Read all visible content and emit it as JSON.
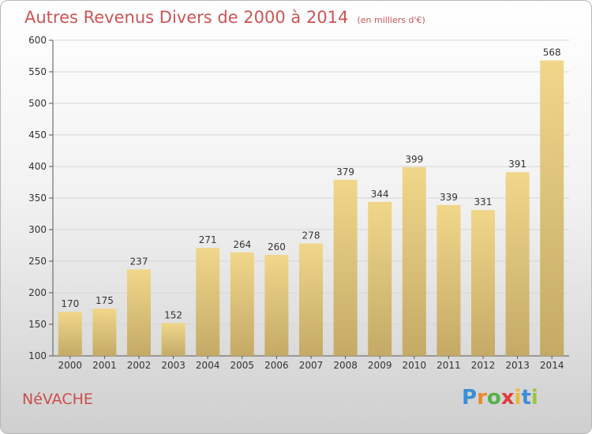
{
  "chart_data": {
    "type": "bar",
    "title": "Autres Revenus Divers de 2000 à 2014",
    "subtitle": "(en milliers d'€)",
    "categories": [
      "2000",
      "2001",
      "2002",
      "2003",
      "2004",
      "2005",
      "2006",
      "2007",
      "2008",
      "2009",
      "2010",
      "2011",
      "2012",
      "2013",
      "2014"
    ],
    "values": [
      170,
      175,
      237,
      152,
      271,
      264,
      260,
      278,
      379,
      344,
      399,
      339,
      331,
      391,
      568
    ],
    "ylim": [
      100,
      600
    ],
    "yticks": [
      100,
      150,
      200,
      250,
      300,
      350,
      400,
      450,
      500,
      550,
      600
    ],
    "grid": true,
    "bar_color": "#f0d78a",
    "bar_color_dark": "#c4aa66"
  },
  "commune": "NéVACHE",
  "logo": {
    "letters": [
      "P",
      "r",
      "o",
      "x",
      "i",
      "t",
      "i"
    ],
    "colors": [
      "#3a8fd6",
      "#e98a2b",
      "#55b04a",
      "#e23b3b",
      "#f2b631",
      "#3a8fd6",
      "#9bc53d"
    ]
  }
}
